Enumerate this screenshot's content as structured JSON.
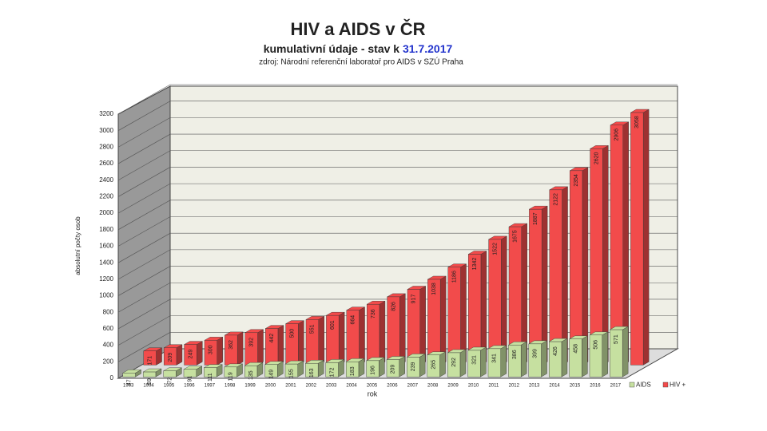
{
  "chart_data": {
    "type": "bar3d",
    "title": "HIV a AIDS v ČR",
    "subtitle": "kumulativní údaje - stav k",
    "subtitle_date": "31.7.2017",
    "source": "zdroj: Národní referenční laboratoř pro AIDS v SZÚ Praha",
    "y_label": "absolutní počty osob",
    "x_label": "rok",
    "categories": [
      "1993",
      "1994",
      "1995",
      "1996",
      "1997",
      "1998",
      "1999",
      "2000",
      "2001",
      "2002",
      "2003",
      "2004",
      "2005",
      "2006",
      "2007",
      "2008",
      "2009",
      "2010",
      "2011",
      "2012",
      "2013",
      "2014",
      "2015",
      "2016",
      "2017"
    ],
    "series": [
      {
        "name": "AIDS",
        "color": "#c6e0a0",
        "values": [
          47,
          59,
          72,
          91,
          111,
          119,
          135,
          149,
          155,
          163,
          172,
          183,
          196,
          209,
          239,
          265,
          292,
          321,
          341,
          386,
          399,
          426,
          458,
          506,
          571
        ]
      },
      {
        "name": "HIV +",
        "color": "#f24b4b",
        "values": [
          171,
          209,
          249,
          300,
          362,
          392,
          442,
          500,
          551,
          601,
          664,
          736,
          826,
          917,
          1038,
          1186,
          1342,
          1522,
          1675,
          1887,
          2122,
          2354,
          2620,
          2906,
          3058
        ]
      }
    ],
    "ylim": [
      0,
      3200
    ],
    "yticks": [
      0,
      200,
      400,
      600,
      800,
      1000,
      1200,
      1400,
      1600,
      1800,
      2000,
      2200,
      2400,
      2600,
      2800,
      3000,
      3200
    ],
    "grid": true
  }
}
